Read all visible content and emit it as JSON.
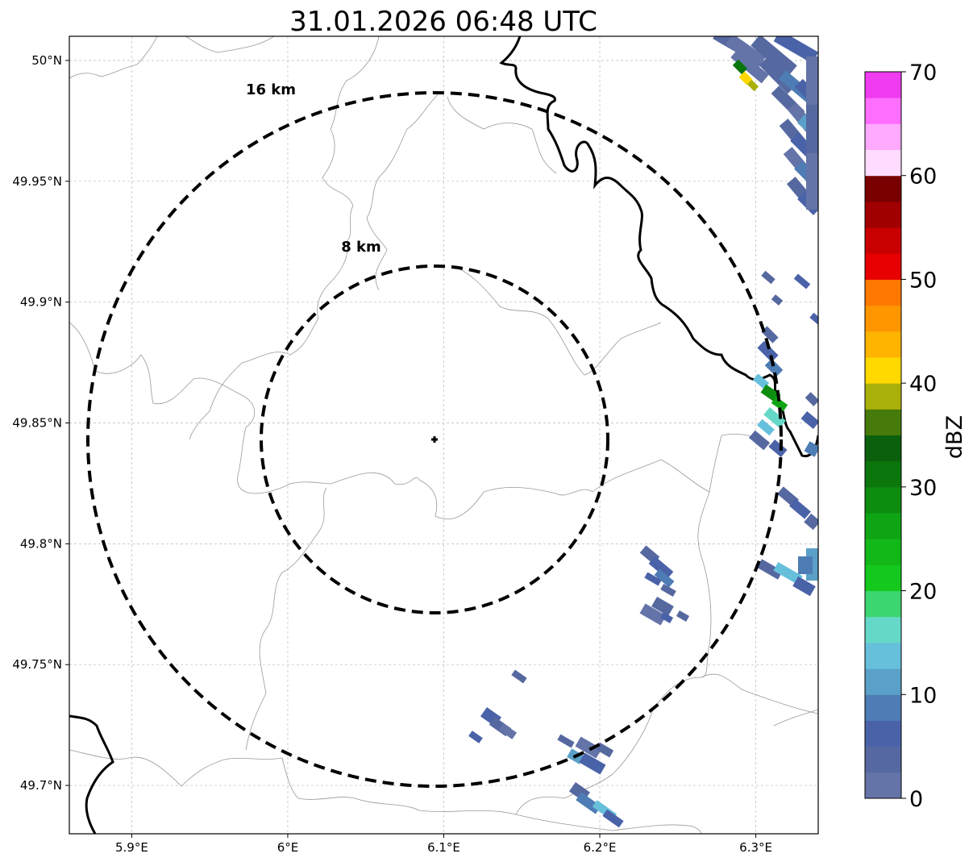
{
  "title": "31.01.2026 06:48 UTC",
  "map": {
    "lon_range": [
      5.86,
      6.34
    ],
    "lat_range": [
      49.68,
      50.01
    ],
    "center": {
      "lon": 6.095,
      "lat": 49.843
    },
    "x_ticks": [
      {
        "value": 5.9,
        "label": "5.9°E"
      },
      {
        "value": 6.0,
        "label": "6°E"
      },
      {
        "value": 6.1,
        "label": "6.1°E"
      },
      {
        "value": 6.2,
        "label": "6.2°E"
      },
      {
        "value": 6.3,
        "label": "6.3°E"
      }
    ],
    "y_ticks": [
      {
        "value": 50.0,
        "label": "50°N"
      },
      {
        "value": 49.95,
        "label": "49.95°N"
      },
      {
        "value": 49.9,
        "label": "49.9°N"
      },
      {
        "value": 49.85,
        "label": "49.85°N"
      },
      {
        "value": 49.8,
        "label": "49.8°N"
      },
      {
        "value": 49.75,
        "label": "49.75°N"
      },
      {
        "value": 49.7,
        "label": "49.7°N"
      }
    ],
    "range_rings": [
      {
        "km": 8,
        "label": "8 km"
      },
      {
        "km": 16,
        "label": "16 km"
      }
    ],
    "grid": true
  },
  "colorbar": {
    "label": "dBZ",
    "ticks": [
      "0",
      "10",
      "20",
      "30",
      "40",
      "50",
      "60",
      "70"
    ],
    "colors": [
      "#6474a8",
      "#5668a0",
      "#4a62a8",
      "#4e7cb4",
      "#5aa0c8",
      "#66c0dc",
      "#66d8c8",
      "#3cd670",
      "#14c81e",
      "#12b818",
      "#0fa414",
      "#0e8c10",
      "#0a760c",
      "#0a600c",
      "#467a0a",
      "#aab00a",
      "#ffd800",
      "#ffb400",
      "#ff9600",
      "#ff7800",
      "#e60000",
      "#c80000",
      "#a00000",
      "#780000",
      "#ffdcff",
      "#ffaaff",
      "#ff6eff",
      "#f03cf0"
    ]
  },
  "colors": {
    "border": "#000000",
    "boundary": "#999999",
    "grid": "#b8b8b8"
  }
}
